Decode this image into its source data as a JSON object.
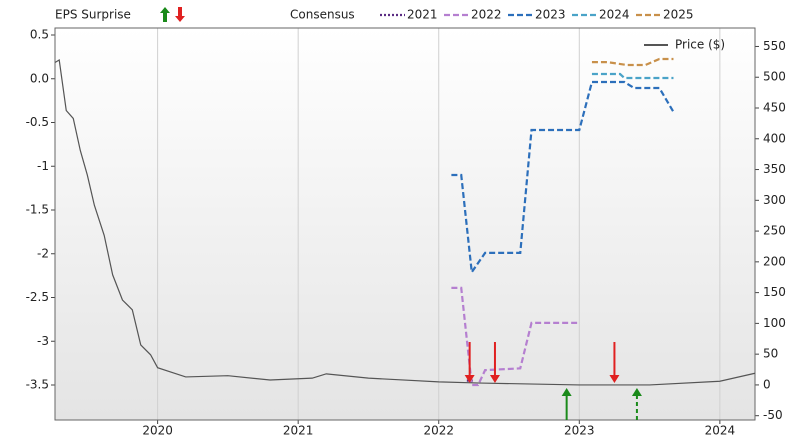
{
  "chart_data": {
    "type": "line",
    "title": "EPS Surprise",
    "legend_title": "Consensus",
    "xlim": [
      2019.27,
      2024.25
    ],
    "xticks": [
      2020,
      2021,
      2022,
      2023,
      2024
    ],
    "ylim": [
      -3.9,
      0.58
    ],
    "yticks": [
      0.5,
      {
        "value": 0,
        "label": "0.0"
      },
      -0.5,
      -1,
      -1.5,
      -2,
      -2.5,
      -3,
      -3.5
    ],
    "y2lim": [
      -57,
      580
    ],
    "y2ticks": [
      550,
      500,
      450,
      400,
      350,
      300,
      250,
      200,
      150,
      100,
      50,
      0,
      -50
    ],
    "grid": true,
    "series": [
      {
        "name": "2021",
        "color": "#5b2c83",
        "dash": "dotted",
        "x": [
          2022.2,
          2022.25
        ],
        "values": [
          -3.45,
          -3.45
        ]
      },
      {
        "name": "2022",
        "color": "#b57fd0",
        "dash": "dashed",
        "x": [
          2022.09,
          2022.16,
          2022.235,
          2022.28,
          2022.33,
          2022.58,
          2022.66,
          2023.0
        ],
        "values": [
          -2.39,
          -2.39,
          -3.5,
          -3.5,
          -3.33,
          -3.31,
          -2.79,
          -2.79
        ]
      },
      {
        "name": "2023",
        "color": "#2c6fbb",
        "dash": "dashed",
        "x": [
          2022.09,
          2022.16,
          2022.235,
          2022.33,
          2022.58,
          2022.66,
          2023.0,
          2023.09,
          2023.32,
          2023.39,
          2023.57,
          2023.67
        ],
        "values": [
          -1.1,
          -1.1,
          -2.21,
          -1.99,
          -1.99,
          -0.586,
          -0.586,
          -0.037,
          -0.037,
          -0.106,
          -0.106,
          -0.38
        ]
      },
      {
        "name": "2024",
        "color": "#4aa3c8",
        "dash": "dashed",
        "x": [
          2023.09,
          2023.29,
          2023.32,
          2023.67
        ],
        "values": [
          0.054,
          0.054,
          0.009,
          0.009
        ]
      },
      {
        "name": "2025",
        "color": "#c8904a",
        "dash": "dashed",
        "x": [
          2023.09,
          2023.2,
          2023.34,
          2023.47,
          2023.57,
          2023.67
        ],
        "values": [
          0.19,
          0.19,
          0.157,
          0.157,
          0.226,
          0.226
        ]
      },
      {
        "name": "Price ($)",
        "color": "#555555",
        "axis": "y2",
        "dash": "solid",
        "x": [
          2019.27,
          2019.3,
          2019.35,
          2019.4,
          2019.45,
          2019.5,
          2019.55,
          2019.62,
          2019.68,
          2019.75,
          2019.82,
          2019.88,
          2019.95,
          2020.0,
          2020.2,
          2020.5,
          2020.8,
          2021.1,
          2021.2,
          2021.5,
          2022.0,
          2022.3,
          2023.0,
          2023.5,
          2024.0,
          2024.25
        ],
        "values": [
          524,
          528,
          446,
          433,
          381,
          341,
          292,
          243,
          179,
          138,
          122,
          65,
          49,
          28,
          13,
          15,
          8,
          11,
          18,
          11,
          5,
          3,
          0,
          0,
          6,
          19
        ]
      }
    ],
    "eps_surprise": [
      {
        "x": 2022.22,
        "direction": "down",
        "color": "#e02020",
        "style": "solid"
      },
      {
        "x": 2022.4,
        "direction": "down",
        "color": "#e02020",
        "style": "solid"
      },
      {
        "x": 2023.25,
        "direction": "down",
        "color": "#e02020",
        "style": "solid"
      },
      {
        "x": 2022.91,
        "direction": "up",
        "color": "#1a8a1a",
        "style": "solid"
      },
      {
        "x": 2023.41,
        "direction": "up",
        "color": "#1a8a1a",
        "style": "dashed"
      }
    ]
  }
}
